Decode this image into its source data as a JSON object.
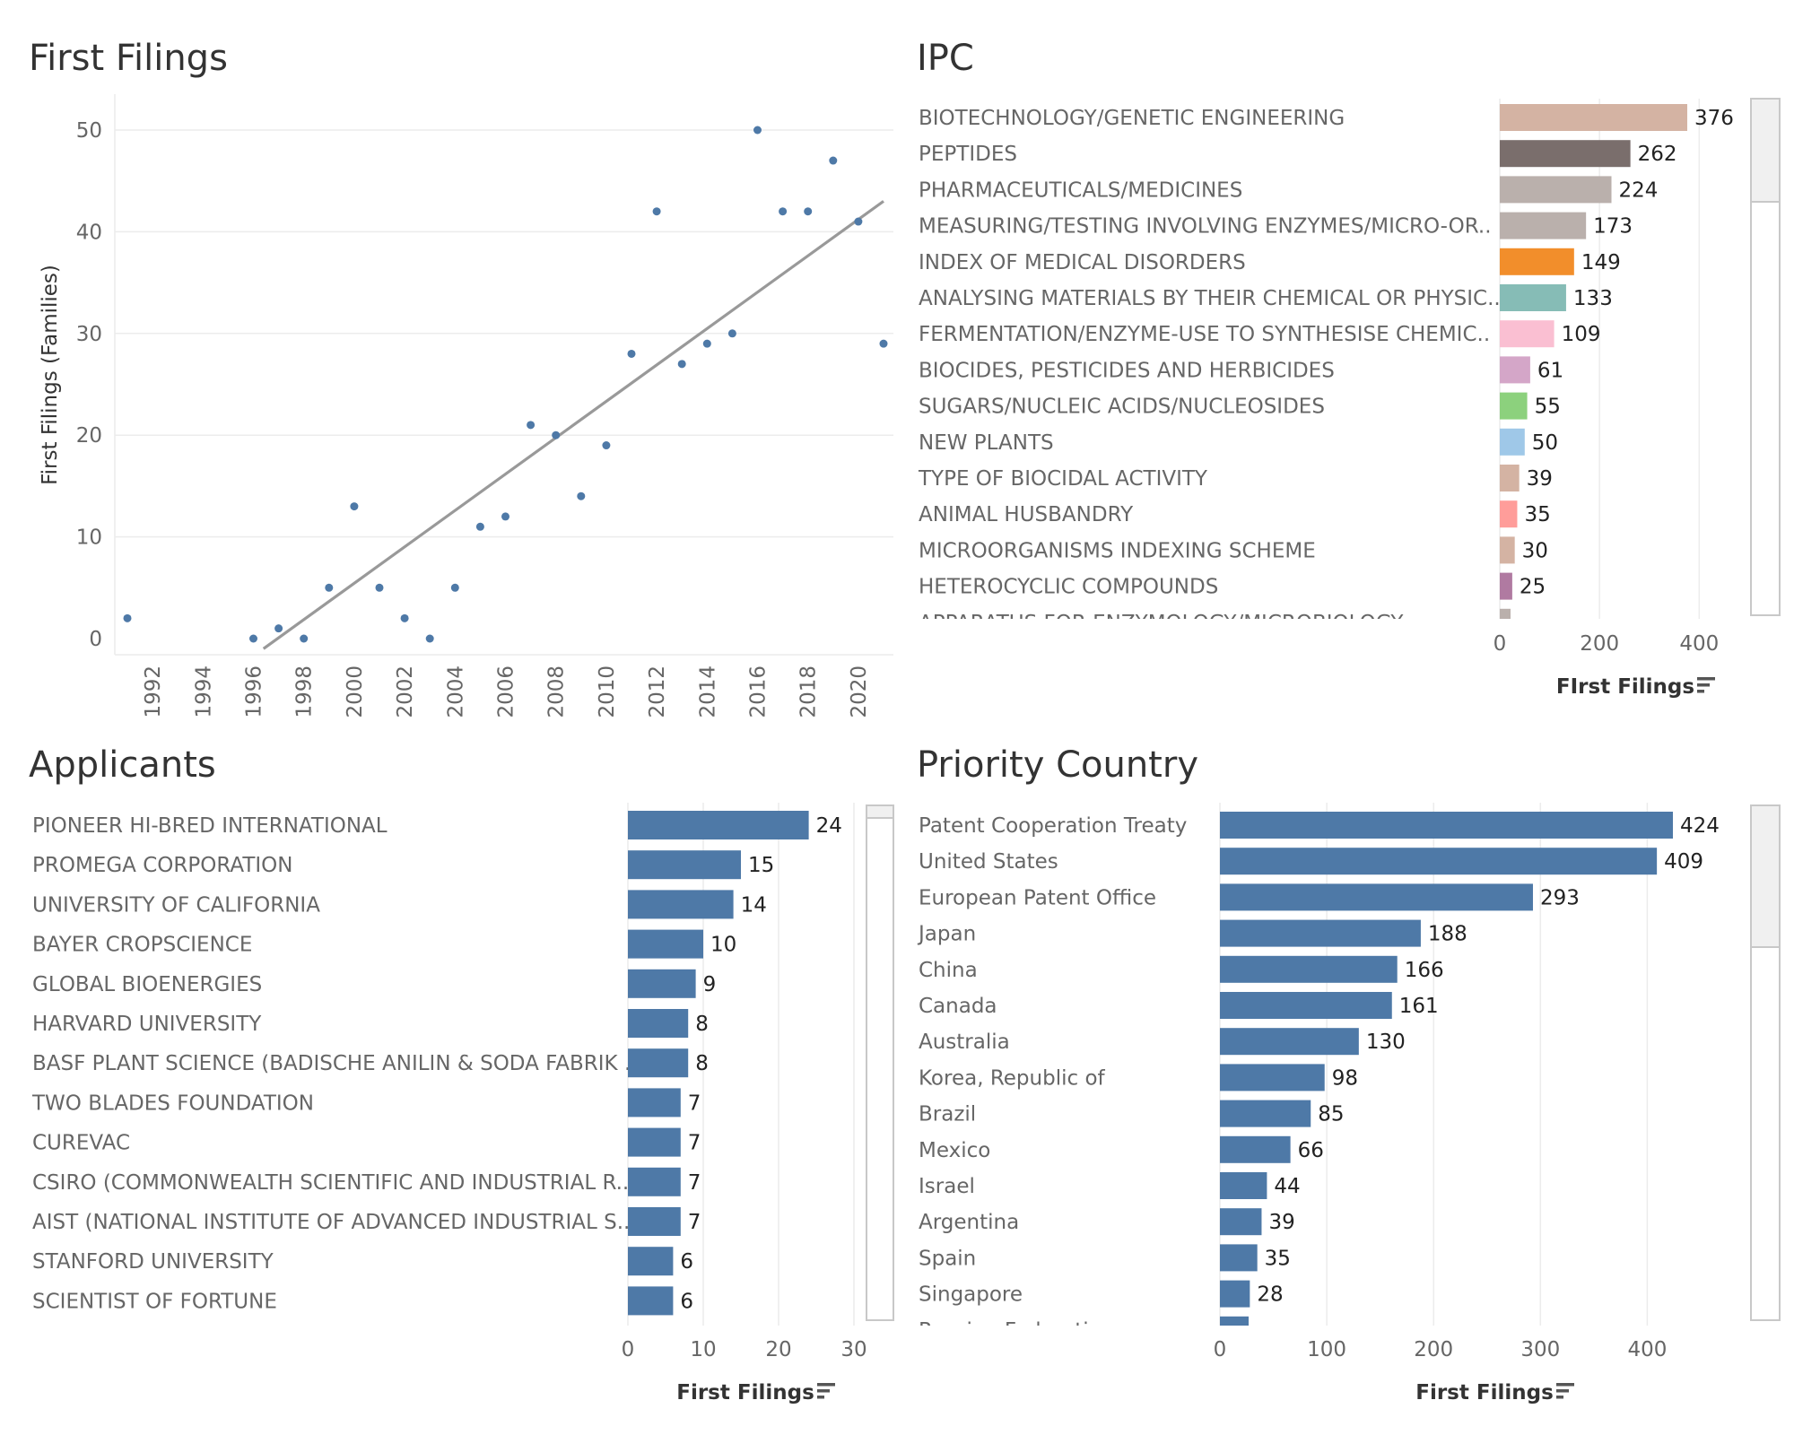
{
  "chart_data": [
    {
      "id": "first-filings",
      "type": "scatter",
      "title": "First Filings",
      "ylabel": "First Filings (Families)",
      "xlabel": "",
      "xlim": [
        1991,
        2021
      ],
      "ylim": [
        0,
        50
      ],
      "y_ticks": [
        0,
        10,
        20,
        30,
        40,
        50
      ],
      "x_ticks": [
        1992,
        1994,
        1996,
        1998,
        2000,
        2002,
        2004,
        2006,
        2008,
        2010,
        2012,
        2014,
        2016,
        2018,
        2020
      ],
      "grid": true,
      "points": [
        {
          "x": 1991,
          "y": 2
        },
        {
          "x": 1996,
          "y": 0
        },
        {
          "x": 1997,
          "y": 1
        },
        {
          "x": 1998,
          "y": 0
        },
        {
          "x": 1999,
          "y": 5
        },
        {
          "x": 2000,
          "y": 13
        },
        {
          "x": 2001,
          "y": 5
        },
        {
          "x": 2002,
          "y": 2
        },
        {
          "x": 2003,
          "y": 0
        },
        {
          "x": 2004,
          "y": 5
        },
        {
          "x": 2005,
          "y": 11
        },
        {
          "x": 2006,
          "y": 12
        },
        {
          "x": 2007,
          "y": 21
        },
        {
          "x": 2008,
          "y": 20
        },
        {
          "x": 2009,
          "y": 14
        },
        {
          "x": 2010,
          "y": 19
        },
        {
          "x": 2011,
          "y": 28
        },
        {
          "x": 2012,
          "y": 42
        },
        {
          "x": 2013,
          "y": 27
        },
        {
          "x": 2014,
          "y": 29
        },
        {
          "x": 2015,
          "y": 30
        },
        {
          "x": 2016,
          "y": 50
        },
        {
          "x": 2017,
          "y": 42
        },
        {
          "x": 2018,
          "y": 42
        },
        {
          "x": 2019,
          "y": 47
        },
        {
          "x": 2020,
          "y": 41
        },
        {
          "x": 2021,
          "y": 29
        }
      ],
      "trend_line": {
        "x1": 1996.4,
        "y1": -1,
        "x2": 2021,
        "y2": 43
      },
      "colors": {
        "point": "#4e79a7",
        "trend": "#999999"
      }
    },
    {
      "id": "ipc",
      "type": "bar",
      "title": "IPC",
      "xlabel": "FIrst Filings",
      "xlim": [
        0,
        450
      ],
      "x_ticks": [
        0,
        200,
        400
      ],
      "categories": [
        "BIOTECHNOLOGY/GENETIC ENGINEERING",
        "PEPTIDES",
        "PHARMACEUTICALS/MEDICINES",
        "MEASURING/TESTING INVOLVING ENZYMES/MICRO-OR..",
        "INDEX OF MEDICAL DISORDERS",
        "ANALYSING MATERIALS BY THEIR CHEMICAL OR PHYSIC..",
        "FERMENTATION/ENZYME-USE TO SYNTHESISE CHEMIC..",
        "BIOCIDES, PESTICIDES AND HERBICIDES",
        "SUGARS/NUCLEIC ACIDS/NUCLEOSIDES",
        "NEW PLANTS",
        "TYPE OF BIOCIDAL ACTIVITY",
        "ANIMAL HUSBANDRY",
        "MICROORGANISMS INDEXING SCHEME",
        "HETEROCYCLIC COMPOUNDS"
      ],
      "values": [
        376,
        262,
        224,
        173,
        149,
        133,
        109,
        61,
        55,
        50,
        39,
        35,
        30,
        25
      ],
      "bar_colors": [
        "#d4b3a3",
        "#7a6e6c",
        "#bab0ac",
        "#bab0ac",
        "#f28e2b",
        "#86bcb6",
        "#fabfd2",
        "#d4a6c8",
        "#8cd17d",
        "#9fc8e8",
        "#d4b3a3",
        "#ff9d9a",
        "#d4b3a3",
        "#b07aa1"
      ],
      "partial_label": "APPARATUS FOR ENZYMOLOGY/MICROBIOLOGY"
    },
    {
      "id": "applicants",
      "type": "bar",
      "title": "Applicants",
      "xlabel": "First Filings",
      "xlim": [
        0,
        35
      ],
      "x_ticks": [
        0,
        10,
        20,
        30
      ],
      "categories": [
        "PIONEER HI-BRED INTERNATIONAL",
        "PROMEGA CORPORATION",
        "UNIVERSITY OF CALIFORNIA",
        "BAYER CROPSCIENCE",
        "GLOBAL BIOENERGIES",
        "HARVARD UNIVERSITY",
        "BASF PLANT SCIENCE (BADISCHE ANILIN & SODA FABRIK ..",
        "TWO BLADES FOUNDATION",
        "CUREVAC",
        "CSIRO (COMMONWEALTH SCIENTIFIC AND INDUSTRIAL R..",
        "AIST (NATIONAL INSTITUTE OF ADVANCED INDUSTRIAL S..",
        "STANFORD UNIVERSITY",
        "SCIENTIST OF FORTUNE"
      ],
      "values": [
        24,
        15,
        14,
        10,
        9,
        8,
        8,
        7,
        7,
        7,
        7,
        6,
        6
      ],
      "colors": {
        "bar": "#4e79a7"
      }
    },
    {
      "id": "priority-country",
      "type": "bar",
      "title": "Priority Country",
      "xlabel": "First Filings",
      "xlim": [
        0,
        480
      ],
      "x_ticks": [
        0,
        100,
        200,
        300,
        400
      ],
      "categories": [
        "Patent Cooperation Treaty",
        "United States",
        "European Patent Office",
        "Japan",
        "China",
        "Canada",
        "Australia",
        "Korea, Republic of",
        "Brazil",
        "Mexico",
        "Israel",
        "Argentina",
        "Spain",
        "Singapore"
      ],
      "values": [
        424,
        409,
        293,
        188,
        166,
        161,
        130,
        98,
        85,
        66,
        44,
        39,
        35,
        28
      ],
      "colors": {
        "bar": "#4e79a7"
      },
      "partial_label": "Russian Federation"
    }
  ]
}
